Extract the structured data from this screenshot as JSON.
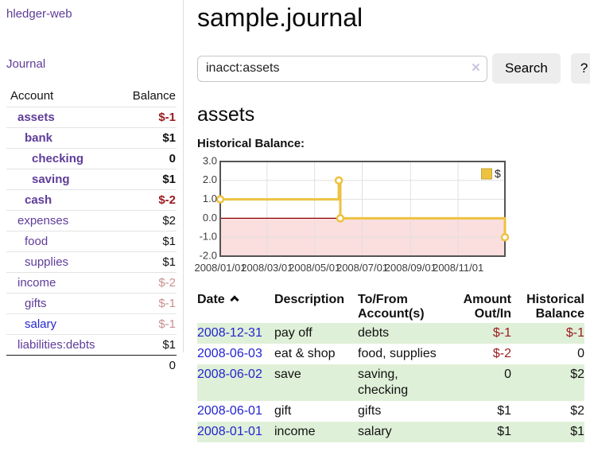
{
  "colors": {
    "purple": "#5e3c99",
    "blue": "#2424cf",
    "negative_strong": "#991a1e",
    "negative_soft": "#c9908f",
    "row_green": "#dff0d8",
    "chart_gold": "#edc240"
  },
  "sidebar": {
    "app_link": "hledger-web",
    "journal_link": "Journal",
    "headers": {
      "account": "Account",
      "balance": "Balance"
    },
    "rows": [
      {
        "name": "assets",
        "depth": 1,
        "bold": true,
        "balance": "$-1",
        "bal": "neg"
      },
      {
        "name": "bank",
        "depth": 2,
        "bold": true,
        "balance": "$1",
        "bal": "pos"
      },
      {
        "name": "checking",
        "depth": 3,
        "bold": true,
        "balance": "0",
        "bal": "pos"
      },
      {
        "name": "saving",
        "depth": 3,
        "bold": true,
        "balance": "$1",
        "bal": "pos"
      },
      {
        "name": "cash",
        "depth": 2,
        "bold": true,
        "balance": "$-2",
        "bal": "neg"
      },
      {
        "name": "expenses",
        "depth": 1,
        "bold": false,
        "balance": "$2",
        "bal": "pos"
      },
      {
        "name": "food",
        "depth": 2,
        "bold": false,
        "balance": "$1",
        "bal": "pos"
      },
      {
        "name": "supplies",
        "depth": 2,
        "bold": false,
        "balance": "$1",
        "bal": "pos"
      },
      {
        "name": "income",
        "depth": 1,
        "bold": false,
        "balance": "$-2",
        "bal": "softneg"
      },
      {
        "name": "gifts",
        "depth": 2,
        "bold": false,
        "balance": "$-1",
        "bal": "softneg"
      },
      {
        "name": "salary",
        "depth": 2,
        "bold": false,
        "balance": "$-1",
        "bal": "softneg",
        "link": "blue"
      },
      {
        "name": "liabilities:debts",
        "depth": 1,
        "bold": false,
        "balance": "$1",
        "bal": "pos"
      }
    ],
    "total": "0"
  },
  "main": {
    "title": "sample.journal",
    "search": {
      "value": "inacct:assets",
      "clear": "×",
      "button": "Search",
      "help": "?"
    },
    "section_title": "assets",
    "chart_label": "Historical Balance:"
  },
  "chart_data": {
    "type": "line",
    "step": true,
    "title": "Historical Balance:",
    "series": [
      {
        "name": "$",
        "color": "#edc240",
        "points": [
          [
            "2008-01-01",
            1
          ],
          [
            "2008-06-01",
            2
          ],
          [
            "2008-06-03",
            0
          ],
          [
            "2008-12-31",
            -1
          ]
        ]
      }
    ],
    "x_domain": [
      "2008-01-01",
      "2008-12-31"
    ],
    "x_ticks": [
      "2008/01/01",
      "2008/03/01",
      "2008/05/01",
      "2008/07/01",
      "2008/09/01",
      "2008/11/01"
    ],
    "y_ticks": [
      "3.0",
      "2.0",
      "1.0",
      "0.0",
      "-1.0",
      "-2.0"
    ],
    "ylim": [
      -2,
      3
    ],
    "grid": true,
    "legend_position": "top-right",
    "grid_color": "#e0e0e0",
    "negative_fill": "#fbdede",
    "zero_line_color": "#8b0000",
    "border_color": "#545454",
    "tick_label_color": "#3c3c3c"
  },
  "transactions": {
    "headers": {
      "date": "Date",
      "description": "Description",
      "accounts": "To/From Account(s)",
      "amount": "Amount Out/In",
      "balance": "Historical Balance"
    },
    "rows": [
      {
        "date": "2008-12-31",
        "description": "pay off",
        "accounts": "debts",
        "amount": "$-1",
        "amount_neg": true,
        "balance": "$-1",
        "balance_neg": true,
        "shaded": true
      },
      {
        "date": "2008-06-03",
        "description": "eat & shop",
        "accounts": "food, supplies",
        "amount": "$-2",
        "amount_neg": true,
        "balance": "0",
        "balance_neg": false,
        "shaded": false
      },
      {
        "date": "2008-06-02",
        "description": "save",
        "accounts": "saving, checking",
        "amount": "0",
        "amount_neg": false,
        "balance": "$2",
        "balance_neg": false,
        "shaded": true
      },
      {
        "date": "2008-06-01",
        "description": "gift",
        "accounts": "gifts",
        "amount": "$1",
        "amount_neg": false,
        "balance": "$2",
        "balance_neg": false,
        "shaded": false
      },
      {
        "date": "2008-01-01",
        "description": "income",
        "accounts": "salary",
        "amount": "$1",
        "amount_neg": false,
        "balance": "$1",
        "balance_neg": false,
        "shaded": true
      }
    ]
  }
}
